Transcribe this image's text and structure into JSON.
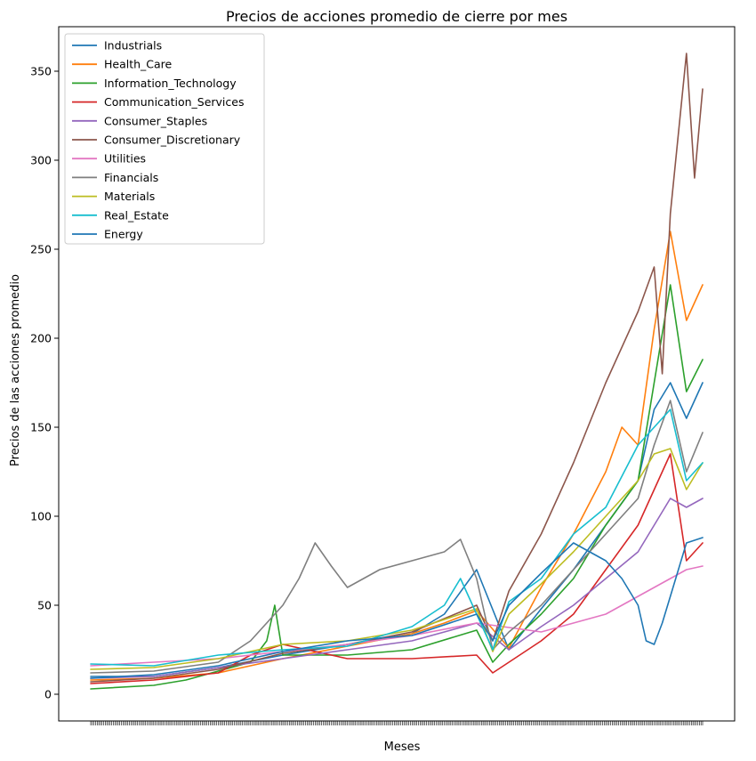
{
  "chart_data": {
    "type": "line",
    "title": "Precios de acciones promedio de cierre por mes",
    "xlabel": "Meses",
    "ylabel": "Precios de las acciones promedio",
    "ylim": [
      -15,
      375
    ],
    "yticks": [
      0,
      50,
      100,
      150,
      200,
      250,
      300,
      350
    ],
    "x_range": [
      1,
      380
    ],
    "grid": false,
    "legend_position": "top-left",
    "series": [
      {
        "name": "Industrials",
        "color": "#1f77b4",
        "x": [
          1,
          40,
          80,
          120,
          160,
          200,
          220,
          240,
          260,
          280,
          300,
          320,
          340,
          350,
          360,
          370,
          380
        ],
        "y": [
          10,
          10,
          15,
          22,
          28,
          34,
          45,
          70,
          25,
          48,
          70,
          95,
          120,
          160,
          175,
          155,
          175
        ]
      },
      {
        "name": "Health_Care",
        "color": "#ff7f0e",
        "x": [
          1,
          40,
          80,
          120,
          160,
          200,
          220,
          240,
          260,
          280,
          300,
          320,
          330,
          340,
          350,
          360,
          370,
          380
        ],
        "y": [
          8,
          9,
          12,
          20,
          27,
          34,
          40,
          47,
          26,
          60,
          90,
          125,
          150,
          140,
          205,
          260,
          210,
          230
        ]
      },
      {
        "name": "Information_Technology",
        "color": "#2ca02c",
        "x": [
          1,
          40,
          60,
          100,
          110,
          115,
          120,
          160,
          200,
          240,
          250,
          260,
          280,
          300,
          320,
          340,
          350,
          360,
          370,
          380
        ],
        "y": [
          3,
          5,
          8,
          18,
          30,
          50,
          22,
          22,
          25,
          36,
          18,
          28,
          45,
          65,
          95,
          120,
          175,
          230,
          170,
          188
        ]
      },
      {
        "name": "Communication_Services",
        "color": "#d62728",
        "x": [
          1,
          40,
          80,
          100,
          120,
          160,
          200,
          240,
          250,
          260,
          280,
          300,
          320,
          340,
          360,
          370,
          380
        ],
        "y": [
          6,
          8,
          12,
          22,
          28,
          20,
          20,
          22,
          12,
          18,
          30,
          45,
          70,
          95,
          135,
          75,
          85
        ]
      },
      {
        "name": "Consumer_Staples",
        "color": "#9467bd",
        "x": [
          1,
          40,
          80,
          120,
          160,
          200,
          240,
          260,
          280,
          300,
          320,
          340,
          360,
          370,
          380
        ],
        "y": [
          9,
          10,
          15,
          20,
          25,
          30,
          40,
          25,
          38,
          50,
          65,
          80,
          110,
          105,
          110
        ]
      },
      {
        "name": "Consumer_Discretionary",
        "color": "#8c564b",
        "x": [
          1,
          40,
          80,
          120,
          160,
          200,
          240,
          250,
          260,
          280,
          300,
          320,
          340,
          350,
          355,
          360,
          370,
          375,
          380
        ],
        "y": [
          7,
          9,
          14,
          23,
          28,
          35,
          50,
          30,
          58,
          90,
          130,
          175,
          215,
          240,
          180,
          270,
          360,
          290,
          340
        ]
      },
      {
        "name": "Utilities",
        "color": "#e377c2",
        "x": [
          1,
          40,
          80,
          120,
          160,
          200,
          240,
          280,
          320,
          340,
          360,
          370,
          380
        ],
        "y": [
          16,
          18,
          20,
          24,
          28,
          33,
          40,
          35,
          45,
          55,
          65,
          70,
          72
        ]
      },
      {
        "name": "Financials",
        "color": "#7f7f7f",
        "x": [
          1,
          40,
          80,
          100,
          120,
          130,
          140,
          150,
          160,
          180,
          200,
          220,
          230,
          240,
          250,
          260,
          280,
          300,
          320,
          340,
          350,
          360,
          370,
          380
        ],
        "y": [
          12,
          13,
          18,
          30,
          50,
          65,
          85,
          72,
          60,
          70,
          75,
          80,
          87,
          65,
          25,
          35,
          50,
          70,
          90,
          110,
          140,
          165,
          125,
          147
        ]
      },
      {
        "name": "Materials",
        "color": "#bcbd22",
        "x": [
          1,
          40,
          80,
          120,
          160,
          200,
          240,
          250,
          260,
          280,
          300,
          320,
          340,
          350,
          360,
          370,
          380
        ],
        "y": [
          14,
          15,
          20,
          28,
          30,
          36,
          48,
          24,
          45,
          62,
          80,
          100,
          120,
          135,
          138,
          115,
          130
        ]
      },
      {
        "name": "Real_Estate",
        "color": "#17becf",
        "x": [
          1,
          40,
          80,
          120,
          160,
          200,
          220,
          230,
          240,
          250,
          260,
          280,
          300,
          320,
          340,
          350,
          360,
          370,
          380
        ],
        "y": [
          17,
          16,
          22,
          25,
          27,
          38,
          50,
          65,
          45,
          25,
          52,
          65,
          90,
          105,
          140,
          150,
          160,
          120,
          130
        ]
      },
      {
        "name": "Energy",
        "color": "#1f77b4",
        "x": [
          1,
          40,
          80,
          120,
          160,
          200,
          240,
          250,
          260,
          280,
          300,
          320,
          330,
          340,
          345,
          350,
          355,
          360,
          370,
          380
        ],
        "y": [
          9,
          11,
          16,
          24,
          30,
          33,
          45,
          30,
          50,
          68,
          85,
          75,
          65,
          50,
          30,
          28,
          40,
          55,
          85,
          88
        ]
      }
    ]
  }
}
